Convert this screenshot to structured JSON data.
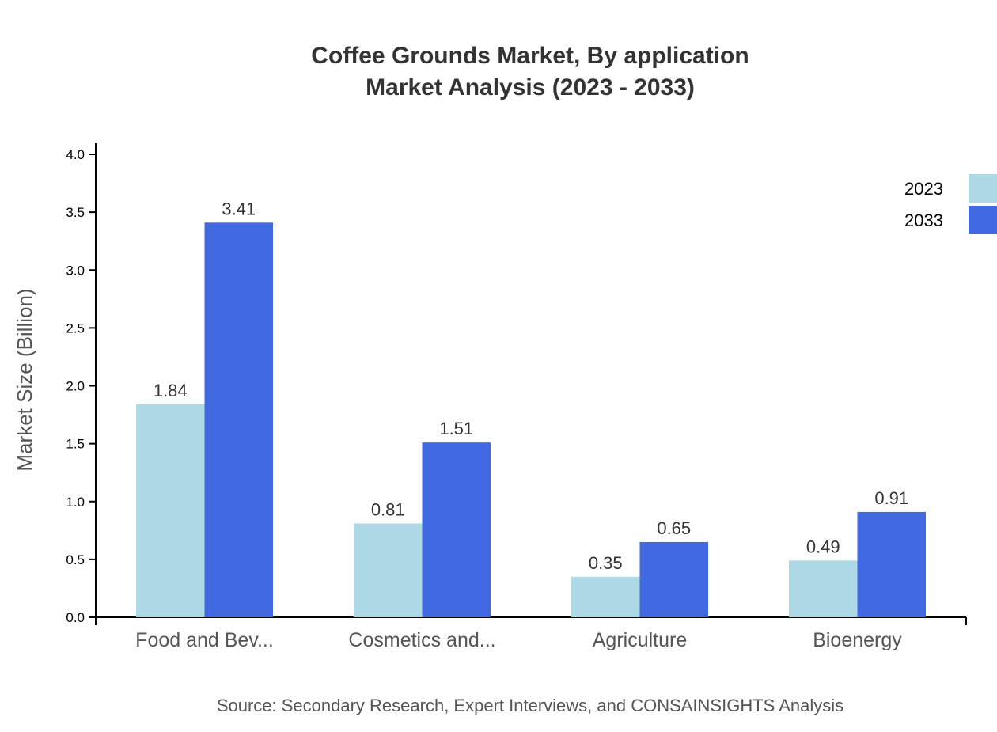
{
  "chart_data": {
    "type": "bar",
    "title": "Coffee Grounds Market, By application",
    "subtitle": "Market Analysis (2023 - 2033)",
    "xlabel": "",
    "ylabel": "Market Size (Billion)",
    "categories": [
      "Food and Bev...",
      "Cosmetics and...",
      "Agriculture",
      "Bioenergy"
    ],
    "series": [
      {
        "name": "2023",
        "color": "#add8e6",
        "values": [
          1.84,
          0.81,
          0.35,
          0.49
        ]
      },
      {
        "name": "2033",
        "color": "#4169e1",
        "values": [
          3.41,
          1.51,
          0.65,
          0.91
        ]
      }
    ],
    "ylim": [
      0,
      4.0
    ],
    "yticks": [
      "0.0",
      "0.5",
      "1.0",
      "1.5",
      "2.0",
      "2.5",
      "3.0",
      "3.5",
      "4.0"
    ],
    "grid": false,
    "legend_position": "top-right",
    "source": "Source: Secondary Research, Expert Interviews, and CONSAINSIGHTS Analysis"
  }
}
